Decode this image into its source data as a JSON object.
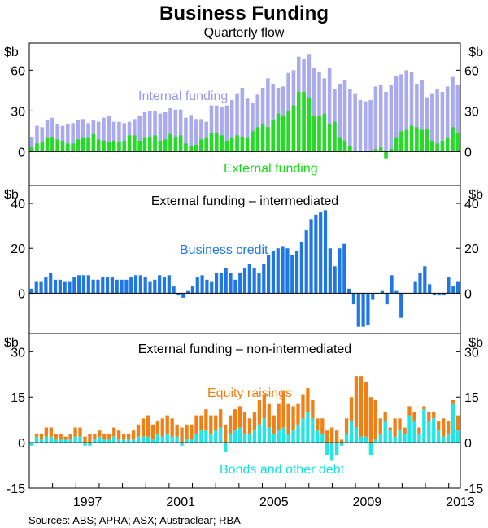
{
  "chart_data": {
    "type": "bar",
    "title": "Business Funding",
    "subtitle": "Quarterly flow",
    "source": "Sources: ABS; APRA; ASX; Austraclear; RBA",
    "x_start_year": 1995,
    "x_end_year": 2013.5,
    "xticks": [
      {
        "year": 1997,
        "label": "1997"
      },
      {
        "year": 2001,
        "label": "2001"
      },
      {
        "year": 2005,
        "label": "2005"
      },
      {
        "year": 2009,
        "label": "2009"
      },
      {
        "year": 2013,
        "label": "2013"
      }
    ],
    "colors": {
      "internal": "#aaaaee",
      "external": "#22dd22",
      "business_credit": "#1f77e6",
      "equity": "#f07f15",
      "bonds": "#22e6e6",
      "text_internal": "#9999ee",
      "text_external": "#11dd11",
      "text_credit": "#1f77e6",
      "text_equity": "#f07f15",
      "text_bonds": "#11e0e0"
    },
    "panels": [
      {
        "unit_label_left": "$b",
        "unit_label_right": "$b",
        "ylim": [
          -25,
          80
        ],
        "yticks": [
          {
            "v": 0,
            "label": "0"
          },
          {
            "v": 30,
            "label": "30"
          },
          {
            "v": 60,
            "label": "60"
          }
        ],
        "series": [
          {
            "name": "Internal funding",
            "stacked_with": "External funding",
            "label": "Internal funding",
            "values": [
              11,
              19,
              18,
              23,
              25,
              20,
              19,
              20,
              21,
              23,
              24,
              21,
              23,
              22,
              25,
              26,
              22,
              22,
              21,
              22,
              24,
              26,
              29,
              30,
              30,
              28,
              29,
              32,
              31,
              31,
              25,
              27,
              24,
              24,
              22,
              34,
              34,
              33,
              34,
              38,
              43,
              47,
              39,
              36,
              42,
              47,
              54,
              50,
              47,
              48,
              58,
              60,
              70,
              68,
              72,
              62,
              59,
              54,
              62,
              46,
              50,
              53,
              46,
              43,
              38,
              37,
              38,
              48,
              49,
              44,
              49,
              56,
              57,
              60,
              59,
              50,
              53,
              40,
              43,
              46,
              44,
              48,
              55,
              49
            ]
          },
          {
            "name": "External funding",
            "label": "External funding",
            "values": [
              3,
              6,
              7,
              10,
              11,
              9,
              8,
              6,
              6,
              9,
              10,
              10,
              13,
              9,
              8,
              7,
              8,
              7,
              8,
              12,
              12,
              8,
              10,
              11,
              12,
              8,
              9,
              13,
              11,
              12,
              6,
              4,
              5,
              9,
              10,
              14,
              14,
              12,
              8,
              10,
              12,
              11,
              10,
              15,
              18,
              20,
              18,
              23,
              28,
              26,
              30,
              34,
              44,
              44,
              40,
              26,
              26,
              28,
              20,
              22,
              10,
              8,
              4,
              1,
              0,
              0,
              0,
              2,
              3,
              -5,
              2,
              10,
              15,
              16,
              19,
              18,
              16,
              17,
              8,
              6,
              8,
              10,
              18,
              14
            ]
          }
        ]
      },
      {
        "title": "External funding – intermediated",
        "unit_label_left": "$b",
        "unit_label_right": "$b",
        "ylim": [
          -18,
          48
        ],
        "yticks": [
          {
            "v": 0,
            "label": "0"
          },
          {
            "v": 20,
            "label": "20"
          },
          {
            "v": 40,
            "label": "40"
          }
        ],
        "series": [
          {
            "name": "Business credit",
            "label": "Business credit",
            "values": [
              2,
              5,
              5,
              7,
              9,
              6,
              6,
              5,
              5,
              7,
              8,
              8,
              8,
              6,
              6,
              7,
              7,
              7,
              6,
              6,
              6,
              7,
              8,
              8,
              7,
              5,
              6,
              8,
              7,
              8,
              3,
              -1,
              -2,
              1,
              3,
              7,
              8,
              6,
              5,
              9,
              9,
              11,
              9,
              6,
              9,
              11,
              13,
              11,
              9,
              13,
              17,
              19,
              20,
              21,
              20,
              17,
              19,
              23,
              28,
              33,
              35,
              36,
              37,
              20,
              12,
              20,
              22,
              2,
              -5,
              -15,
              -15,
              -14,
              -3,
              0,
              1,
              -5,
              8,
              1,
              -11,
              0,
              0,
              5,
              9,
              12,
              4,
              -1,
              -1,
              -1,
              7,
              3,
              5
            ]
          }
        ]
      },
      {
        "title": "External funding – non-intermediated",
        "unit_label_left": "$b",
        "unit_label_right": "$b",
        "ylim": [
          -15,
          36
        ],
        "yticks": [
          {
            "v": -15,
            "label": "-15"
          },
          {
            "v": 0,
            "label": "0"
          },
          {
            "v": 15,
            "label": "15"
          },
          {
            "v": 30,
            "label": "30"
          }
        ],
        "series": [
          {
            "name": "Bonds and other debt",
            "label": "Bonds and other debt",
            "values": [
              -1,
              2,
              1,
              2,
              2,
              1,
              1,
              1,
              1,
              2,
              2,
              -1,
              -1,
              1,
              2,
              1,
              1,
              2,
              1,
              1,
              1,
              1,
              2,
              2,
              2,
              1,
              3,
              2,
              3,
              2,
              2,
              -1,
              1,
              1,
              3,
              4,
              4,
              3,
              4,
              5,
              -3,
              3,
              4,
              5,
              3,
              3,
              4,
              6,
              8,
              5,
              3,
              4,
              5,
              3,
              4,
              6,
              8,
              10,
              8,
              4,
              3,
              -4,
              -6,
              -4,
              -1,
              3,
              7,
              5,
              2,
              2,
              -4,
              1,
              3,
              7,
              4,
              2,
              4,
              3,
              9,
              7,
              3,
              11,
              7,
              8,
              4,
              2,
              3,
              13,
              4
            ]
          },
          {
            "name": "Equity raisings",
            "label": "Equity raisings",
            "values": [
              0,
              1,
              2,
              3,
              3,
              2,
              2,
              1,
              2,
              3,
              3,
              2,
              3,
              2,
              2,
              2,
              2,
              3,
              3,
              2,
              2,
              3,
              4,
              6,
              7,
              5,
              4,
              6,
              6,
              6,
              4,
              5,
              5,
              5,
              6,
              5,
              7,
              6,
              5,
              6,
              6,
              6,
              7,
              7,
              7,
              5,
              6,
              8,
              8,
              8,
              6,
              9,
              12,
              10,
              8,
              7,
              8,
              8,
              6,
              4,
              5,
              4,
              5,
              4,
              1,
              5,
              8,
              17,
              20,
              18,
              15,
              13,
              5,
              3,
              1,
              6,
              4,
              2,
              3,
              3,
              2,
              1,
              3,
              2,
              3,
              6,
              4,
              1,
              5,
              7
            ]
          }
        ]
      }
    ]
  }
}
